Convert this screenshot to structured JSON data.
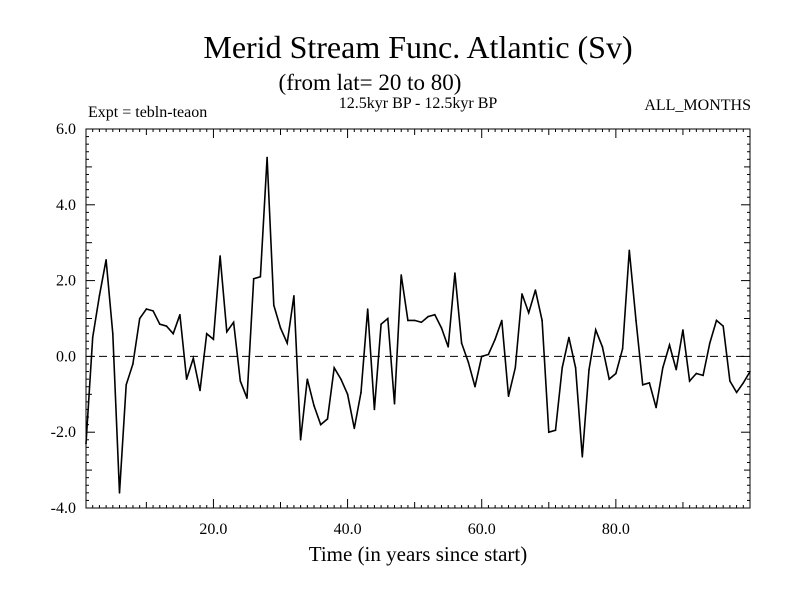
{
  "chart_data": {
    "type": "line",
    "title": "Merid Stream Func. Atlantic (Sv)",
    "subtitle": "(from lat= 20 to 80)",
    "period_label": "12.5kyr BP - 12.5kyr BP",
    "expt_label": "Expt = tebln-teaon",
    "months_label": "ALL_MONTHS",
    "xlabel": "Time (in years since start)",
    "ylabel": "",
    "xlim": [
      1,
      100
    ],
    "ylim": [
      -4,
      6
    ],
    "x_ticks": [
      20,
      40,
      60,
      80
    ],
    "x_tick_labels": [
      "20.0",
      "40.0",
      "60.0",
      "80.0"
    ],
    "y_ticks": [
      -4,
      -2,
      0,
      2,
      4,
      6
    ],
    "y_tick_labels": [
      "-4.0",
      "-2.0",
      "0.0",
      "2.0",
      "4.0",
      "6.0"
    ],
    "zero_line": true,
    "grid": false,
    "series": [
      {
        "name": "Merid Stream Func",
        "x": [
          1,
          2,
          3,
          4,
          5,
          6,
          7,
          8,
          9,
          10,
          11,
          12,
          13,
          14,
          15,
          16,
          17,
          18,
          19,
          20,
          21,
          22,
          23,
          24,
          25,
          26,
          27,
          28,
          29,
          30,
          31,
          32,
          33,
          34,
          35,
          36,
          37,
          38,
          39,
          40,
          41,
          42,
          43,
          44,
          45,
          46,
          47,
          48,
          49,
          50,
          51,
          52,
          53,
          54,
          55,
          56,
          57,
          58,
          59,
          60,
          61,
          62,
          63,
          64,
          65,
          66,
          67,
          68,
          69,
          70,
          71,
          72,
          73,
          74,
          75,
          76,
          77,
          78,
          79,
          80,
          81,
          82,
          83,
          84,
          85,
          86,
          87,
          88,
          89,
          90,
          91,
          92,
          93,
          94,
          95,
          96,
          97,
          98,
          99,
          100
        ],
        "values": [
          -2.3,
          0.5,
          1.6,
          2.55,
          0.6,
          -3.6,
          -0.75,
          -0.2,
          1.0,
          1.25,
          1.2,
          0.85,
          0.8,
          0.6,
          1.1,
          -0.6,
          -0.05,
          -0.9,
          0.6,
          0.45,
          2.65,
          0.65,
          0.9,
          -0.65,
          -1.1,
          2.05,
          2.1,
          5.25,
          1.35,
          0.75,
          0.35,
          1.6,
          -2.2,
          -0.6,
          -1.3,
          -1.8,
          -1.65,
          -0.3,
          -0.6,
          -1.0,
          -1.9,
          -0.95,
          1.25,
          -1.4,
          0.85,
          1.0,
          -1.25,
          2.15,
          0.95,
          0.95,
          0.9,
          1.05,
          1.1,
          0.75,
          0.25,
          2.2,
          0.35,
          -0.15,
          -0.8,
          0.0,
          0.05,
          0.45,
          0.95,
          -1.05,
          -0.3,
          1.65,
          1.15,
          1.75,
          0.95,
          -2.0,
          -1.95,
          -0.3,
          0.5,
          -0.3,
          -2.65,
          -0.35,
          0.7,
          0.25,
          -0.6,
          -0.45,
          0.2,
          2.8,
          0.95,
          -0.75,
          -0.7,
          -1.35,
          -0.3,
          0.3,
          -0.35,
          0.7,
          -0.65,
          -0.45,
          -0.5,
          0.35,
          0.95,
          0.8,
          -0.65,
          -0.95,
          -0.7,
          -0.4
        ]
      }
    ]
  }
}
